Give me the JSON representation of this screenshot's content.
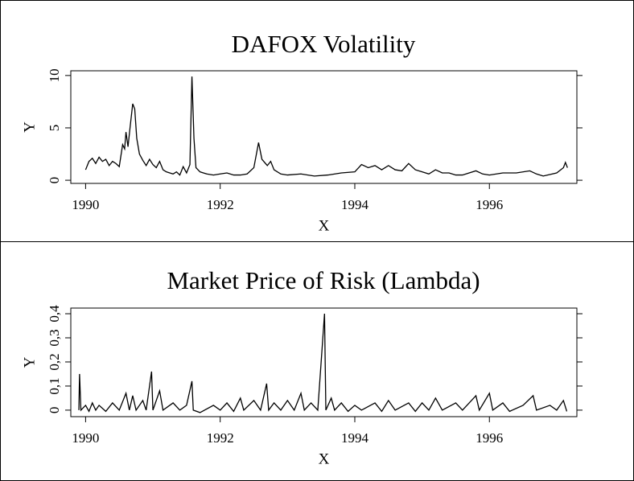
{
  "chart_data": [
    {
      "type": "line",
      "title": "DAFOX Volatility",
      "x_label": "X",
      "y_label": "Y",
      "color": "#000000",
      "x": [
        1990.0,
        1990.05,
        1990.1,
        1990.15,
        1990.2,
        1990.25,
        1990.3,
        1990.35,
        1990.4,
        1990.45,
        1990.5,
        1990.55,
        1990.58,
        1990.6,
        1990.63,
        1990.66,
        1990.7,
        1990.73,
        1990.76,
        1990.8,
        1990.85,
        1990.9,
        1990.95,
        1991.0,
        1991.05,
        1991.1,
        1991.15,
        1991.2,
        1991.25,
        1991.3,
        1991.35,
        1991.4,
        1991.45,
        1991.5,
        1991.55,
        1991.58,
        1991.61,
        1991.64,
        1991.7,
        1991.8,
        1991.9,
        1992.0,
        1992.1,
        1992.2,
        1992.3,
        1992.4,
        1992.5,
        1992.57,
        1992.62,
        1992.7,
        1992.75,
        1992.8,
        1992.9,
        1993.0,
        1993.2,
        1993.4,
        1993.6,
        1993.8,
        1994.0,
        1994.1,
        1994.2,
        1994.3,
        1994.4,
        1994.5,
        1994.6,
        1994.7,
        1994.8,
        1994.9,
        1995.0,
        1995.1,
        1995.2,
        1995.3,
        1995.4,
        1995.5,
        1995.6,
        1995.8,
        1995.9,
        1996.0,
        1996.2,
        1996.4,
        1996.6,
        1996.7,
        1996.8,
        1997.0,
        1997.1,
        1997.13,
        1997.16
      ],
      "values": [
        1.0,
        1.8,
        2.1,
        1.6,
        2.2,
        1.8,
        2.0,
        1.4,
        1.8,
        1.6,
        1.3,
        3.4,
        3.0,
        4.6,
        3.2,
        5.0,
        7.3,
        6.8,
        4.0,
        2.5,
        1.9,
        1.4,
        2.0,
        1.5,
        1.2,
        1.8,
        1.0,
        0.8,
        0.7,
        0.6,
        0.8,
        0.5,
        1.3,
        0.7,
        1.5,
        9.9,
        4.0,
        1.2,
        0.8,
        0.6,
        0.5,
        0.6,
        0.7,
        0.5,
        0.5,
        0.6,
        1.2,
        3.6,
        2.0,
        1.4,
        1.8,
        1.0,
        0.6,
        0.5,
        0.6,
        0.4,
        0.5,
        0.7,
        0.8,
        1.5,
        1.2,
        1.4,
        1.0,
        1.4,
        1.0,
        0.9,
        1.6,
        1.0,
        0.8,
        0.6,
        1.0,
        0.7,
        0.7,
        0.5,
        0.5,
        0.9,
        0.6,
        0.5,
        0.7,
        0.7,
        0.9,
        0.6,
        0.4,
        0.7,
        1.2,
        1.7,
        1.2
      ],
      "xlim": [
        1989.78,
        1997.3
      ],
      "xticks": [
        1990,
        1992,
        1994,
        1996
      ],
      "ylim": [
        -0.3,
        10.45
      ],
      "yticks": [
        0,
        5,
        10
      ]
    },
    {
      "type": "line",
      "title": "Market Price of Risk (Lambda)",
      "x_label": "X",
      "y_label": "Y",
      "color": "#000000",
      "x": [
        1989.9,
        1989.91,
        1989.93,
        1990.0,
        1990.05,
        1990.1,
        1990.15,
        1990.2,
        1990.3,
        1990.4,
        1990.5,
        1990.6,
        1990.65,
        1990.7,
        1990.75,
        1990.85,
        1990.9,
        1990.98,
        1991.0,
        1991.1,
        1991.15,
        1991.3,
        1991.4,
        1991.5,
        1991.58,
        1991.6,
        1991.7,
        1991.9,
        1992.0,
        1992.1,
        1992.2,
        1992.3,
        1992.35,
        1992.5,
        1992.6,
        1992.69,
        1992.72,
        1992.8,
        1992.9,
        1993.0,
        1993.1,
        1993.2,
        1993.25,
        1993.35,
        1993.45,
        1993.55,
        1993.57,
        1993.65,
        1993.7,
        1993.8,
        1993.9,
        1994.0,
        1994.1,
        1994.3,
        1994.4,
        1994.5,
        1994.6,
        1994.8,
        1994.9,
        1995.0,
        1995.1,
        1995.2,
        1995.3,
        1995.5,
        1995.6,
        1995.8,
        1995.85,
        1996.0,
        1996.05,
        1996.2,
        1996.3,
        1996.5,
        1996.65,
        1996.7,
        1996.9,
        1997.0,
        1997.1,
        1997.15
      ],
      "values": [
        0.0,
        0.15,
        0.0,
        0.02,
        -0.005,
        0.03,
        0.0,
        0.02,
        -0.005,
        0.03,
        0.0,
        0.07,
        0.0,
        0.06,
        0.0,
        0.04,
        0.0,
        0.16,
        0.0,
        0.08,
        0.0,
        0.03,
        0.0,
        0.02,
        0.12,
        0.0,
        -0.01,
        0.02,
        0.0,
        0.03,
        -0.005,
        0.05,
        0.0,
        0.04,
        0.0,
        0.11,
        0.0,
        0.03,
        0.0,
        0.04,
        0.0,
        0.07,
        0.0,
        0.03,
        0.0,
        0.4,
        0.0,
        0.05,
        0.0,
        0.03,
        -0.005,
        0.02,
        0.0,
        0.03,
        -0.005,
        0.04,
        0.0,
        0.03,
        -0.005,
        0.03,
        0.0,
        0.05,
        0.0,
        0.03,
        0.0,
        0.06,
        0.0,
        0.07,
        0.0,
        0.03,
        -0.005,
        0.02,
        0.06,
        0.0,
        0.02,
        0.0,
        0.04,
        -0.005
      ],
      "xlim": [
        1989.78,
        1997.3
      ],
      "xticks": [
        1990,
        1992,
        1994,
        1996
      ],
      "ylim": [
        -0.027,
        0.4235
      ],
      "yticks": [
        0,
        {
          "value": 0.1,
          "label": "0,1"
        },
        {
          "value": 0.2,
          "label": "0,2"
        },
        {
          "value": 0.3,
          "label": "0,3"
        },
        {
          "value": 0.4,
          "label": "0,4"
        }
      ]
    }
  ]
}
